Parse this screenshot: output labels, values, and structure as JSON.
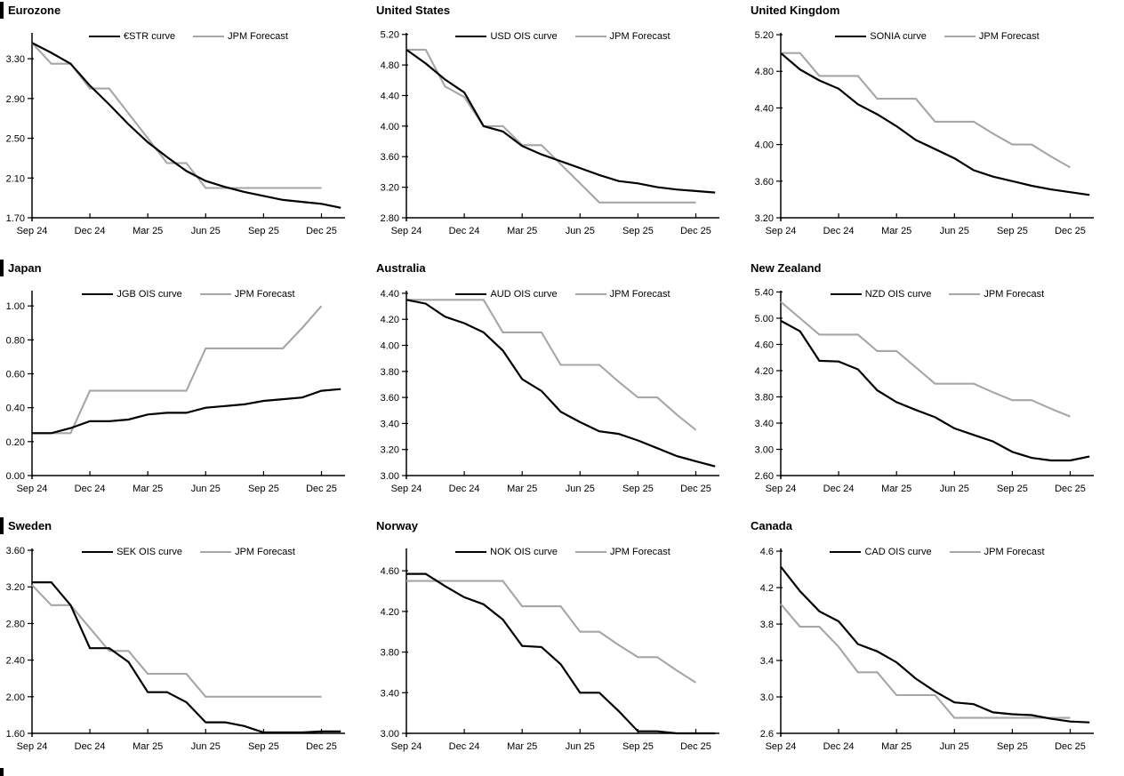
{
  "chart_data": {
    "type": "line",
    "grid": false,
    "legend_position": "top-center",
    "x_months": [
      "Sep 24",
      "Oct 24",
      "Nov 24",
      "Dec 24",
      "Jan 25",
      "Feb 25",
      "Mar 25",
      "Apr 25",
      "May 25",
      "Jun 25",
      "Jul 25",
      "Aug 25",
      "Sep 25",
      "Oct 25",
      "Nov 25",
      "Dec 25",
      "Jan 26"
    ],
    "x_tick_labels": [
      "Sep 24",
      "Dec 24",
      "Mar 25",
      "Jun 25",
      "Sep 25",
      "Dec 25"
    ],
    "x_tick_month_indices": [
      0,
      3,
      6,
      9,
      12,
      15
    ],
    "colors": {
      "ois_line": "#000000",
      "forecast_line": "#a6a6a6"
    },
    "charts": [
      {
        "title": "Eurozone",
        "left_bar": true,
        "y_min": 1.7,
        "y_max": 3.56,
        "y_ticks": [
          "1.70",
          "2.10",
          "2.50",
          "2.90",
          "3.30"
        ],
        "series": [
          {
            "name": "€STR curve",
            "color": "#000000",
            "values": [
              3.46,
              3.36,
              3.25,
              3.03,
              2.84,
              2.64,
              2.46,
              2.31,
              2.17,
              2.07,
              2.01,
              1.96,
              1.92,
              1.88,
              1.86,
              1.84,
              1.8
            ]
          },
          {
            "name": "JPM Forecast",
            "color": "#a6a6a6",
            "values": [
              3.46,
              3.25,
              3.25,
              3.0,
              3.0,
              2.75,
              2.5,
              2.25,
              2.25,
              2.0,
              2.0,
              2.0,
              2.0,
              2.0,
              2.0,
              2.0
            ]
          }
        ]
      },
      {
        "title": "United States",
        "left_bar": false,
        "y_min": 2.8,
        "y_max": 5.22,
        "y_ticks": [
          "2.80",
          "3.20",
          "3.60",
          "4.00",
          "4.40",
          "4.80",
          "5.20"
        ],
        "series": [
          {
            "name": "USD OIS curve",
            "color": "#000000",
            "values": [
              5.0,
              4.82,
              4.61,
              4.44,
              4.0,
              3.93,
              3.74,
              3.63,
              3.54,
              3.45,
              3.36,
              3.28,
              3.25,
              3.2,
              3.17,
              3.15,
              3.13
            ]
          },
          {
            "name": "JPM Forecast",
            "color": "#a6a6a6",
            "values": [
              5.0,
              5.0,
              4.52,
              4.38,
              4.0,
              4.0,
              3.75,
              3.75,
              3.5,
              3.25,
              3.0,
              3.0,
              3.0,
              3.0,
              3.0,
              3.0
            ]
          }
        ]
      },
      {
        "title": "United Kingdom",
        "left_bar": false,
        "y_min": 3.2,
        "y_max": 5.22,
        "y_ticks": [
          "3.20",
          "3.60",
          "4.00",
          "4.40",
          "4.80",
          "5.20"
        ],
        "series": [
          {
            "name": "SONIA curve",
            "color": "#000000",
            "values": [
              5.0,
              4.82,
              4.7,
              4.61,
              4.44,
              4.33,
              4.2,
              4.05,
              3.95,
              3.85,
              3.72,
              3.65,
              3.6,
              3.55,
              3.51,
              3.48,
              3.45
            ]
          },
          {
            "name": "JPM Forecast",
            "color": "#a6a6a6",
            "values": [
              5.0,
              5.0,
              4.75,
              4.75,
              4.75,
              4.5,
              4.5,
              4.5,
              4.25,
              4.25,
              4.25,
              4.12,
              4.0,
              4.0,
              3.87,
              3.75
            ]
          }
        ]
      },
      {
        "title": "Japan",
        "left_bar": true,
        "y_min": 0.0,
        "y_max": 1.09,
        "y_ticks": [
          "0.00",
          "0.20",
          "0.40",
          "0.60",
          "0.80",
          "1.00"
        ],
        "series": [
          {
            "name": "JGB OIS curve",
            "color": "#000000",
            "values": [
              0.25,
              0.25,
              0.28,
              0.32,
              0.32,
              0.33,
              0.36,
              0.37,
              0.37,
              0.4,
              0.41,
              0.42,
              0.44,
              0.45,
              0.46,
              0.5,
              0.51
            ]
          },
          {
            "name": "JPM Forecast",
            "color": "#a6a6a6",
            "values": [
              0.25,
              0.25,
              0.25,
              0.5,
              0.5,
              0.5,
              0.5,
              0.5,
              0.5,
              0.75,
              0.75,
              0.75,
              0.75,
              0.75,
              0.87,
              1.0
            ]
          }
        ]
      },
      {
        "title": "Australia",
        "left_bar": false,
        "y_min": 3.0,
        "y_max": 4.42,
        "y_ticks": [
          "3.00",
          "3.20",
          "3.40",
          "3.60",
          "3.80",
          "4.00",
          "4.20",
          "4.40"
        ],
        "series": [
          {
            "name": "AUD OIS curve",
            "color": "#000000",
            "values": [
              4.35,
              4.32,
              4.22,
              4.17,
              4.1,
              3.96,
              3.74,
              3.65,
              3.49,
              3.41,
              3.34,
              3.32,
              3.27,
              3.21,
              3.15,
              3.11,
              3.07
            ]
          },
          {
            "name": "JPM Forecast",
            "color": "#a6a6a6",
            "values": [
              4.35,
              4.35,
              4.35,
              4.35,
              4.35,
              4.1,
              4.1,
              4.1,
              3.85,
              3.85,
              3.85,
              3.72,
              3.6,
              3.6,
              3.47,
              3.35
            ]
          }
        ]
      },
      {
        "title": "New Zealand",
        "left_bar": false,
        "y_min": 2.6,
        "y_max": 5.42,
        "y_ticks": [
          "2.60",
          "3.00",
          "3.40",
          "3.80",
          "4.20",
          "4.60",
          "5.00",
          "5.40"
        ],
        "series": [
          {
            "name": "NZD OIS curve",
            "color": "#000000",
            "values": [
              4.96,
              4.8,
              4.35,
              4.34,
              4.22,
              3.9,
              3.72,
              3.6,
              3.49,
              3.32,
              3.22,
              3.12,
              2.96,
              2.87,
              2.83,
              2.83,
              2.89
            ]
          },
          {
            "name": "JPM Forecast",
            "color": "#a6a6a6",
            "values": [
              5.25,
              5.0,
              4.75,
              4.75,
              4.75,
              4.5,
              4.5,
              4.25,
              4.0,
              4.0,
              4.0,
              3.87,
              3.75,
              3.75,
              3.62,
              3.5
            ]
          }
        ]
      },
      {
        "title": "Sweden",
        "left_bar": true,
        "y_min": 1.6,
        "y_max": 3.62,
        "y_ticks": [
          "1.60",
          "2.00",
          "2.40",
          "2.80",
          "3.20",
          "3.60"
        ],
        "series": [
          {
            "name": "SEK OIS curve",
            "color": "#000000",
            "values": [
              3.25,
              3.25,
              3.0,
              2.53,
              2.53,
              2.38,
              2.05,
              2.05,
              1.94,
              1.72,
              1.72,
              1.68,
              1.61,
              1.61,
              1.61,
              1.62,
              1.62
            ]
          },
          {
            "name": "JPM Forecast",
            "color": "#a6a6a6",
            "values": [
              3.22,
              3.0,
              3.0,
              2.75,
              2.5,
              2.5,
              2.25,
              2.25,
              2.25,
              2.0,
              2.0,
              2.0,
              2.0,
              2.0,
              2.0,
              2.0
            ]
          }
        ]
      },
      {
        "title": "Norway",
        "left_bar": false,
        "y_min": 3.0,
        "y_max": 4.82,
        "y_ticks": [
          "3.00",
          "3.40",
          "3.80",
          "4.20",
          "4.60"
        ],
        "series": [
          {
            "name": "NOK OIS curve",
            "color": "#000000",
            "values": [
              4.57,
              4.57,
              4.45,
              4.34,
              4.27,
              4.12,
              3.86,
              3.85,
              3.68,
              3.4,
              3.4,
              3.22,
              3.02,
              3.02,
              3.0,
              3.0,
              3.0
            ]
          },
          {
            "name": "JPM Forecast",
            "color": "#a6a6a6",
            "values": [
              4.5,
              4.5,
              4.5,
              4.5,
              4.5,
              4.5,
              4.25,
              4.25,
              4.25,
              4.0,
              4.0,
              3.87,
              3.75,
              3.75,
              3.62,
              3.5
            ]
          }
        ]
      },
      {
        "title": "Canada",
        "left_bar": false,
        "y_min": 2.6,
        "y_max": 4.63,
        "y_ticks": [
          "2.6",
          "3.0",
          "3.4",
          "3.8",
          "4.2",
          "4.6"
        ],
        "series": [
          {
            "name": "CAD OIS curve",
            "color": "#000000",
            "values": [
              4.43,
              4.16,
              3.94,
              3.83,
              3.58,
              3.5,
              3.38,
              3.2,
              3.06,
              2.94,
              2.92,
              2.83,
              2.81,
              2.8,
              2.76,
              2.73,
              2.72
            ]
          },
          {
            "name": "JPM Forecast",
            "color": "#a6a6a6",
            "values": [
              4.02,
              3.77,
              3.77,
              3.55,
              3.27,
              3.27,
              3.02,
              3.02,
              3.02,
              2.77,
              2.77,
              2.77,
              2.77,
              2.77,
              2.77,
              2.77
            ]
          }
        ]
      }
    ]
  }
}
